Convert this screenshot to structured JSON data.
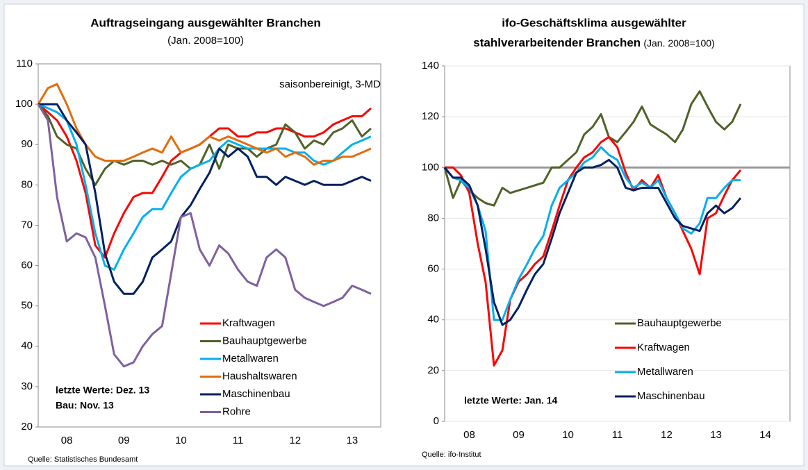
{
  "chart_data": [
    {
      "type": "line",
      "title": "Auftragseingang ausgewählter Branchen",
      "subtitle": "(Jan. 2008=100)",
      "annotations": [
        "saisonbereinigt, 3-MD",
        "letzte Werte: Dez. 13",
        "Bau: Nov. 13"
      ],
      "source": "Quelle: Statistisches Bundesamt",
      "x": [
        2008,
        2008.17,
        2008.33,
        2008.5,
        2008.67,
        2008.83,
        2009,
        2009.17,
        2009.33,
        2009.5,
        2009.67,
        2009.83,
        2010,
        2010.17,
        2010.33,
        2010.5,
        2010.67,
        2010.83,
        2011,
        2011.17,
        2011.33,
        2011.5,
        2011.67,
        2011.83,
        2012,
        2012.17,
        2012.33,
        2012.5,
        2012.67,
        2012.83,
        2013,
        2013.17,
        2013.33,
        2013.5,
        2013.67,
        2013.83
      ],
      "xlim": [
        2008,
        2014
      ],
      "xticks": [
        {
          "value": 2008.5,
          "label": "08"
        },
        {
          "value": 2009.5,
          "label": "09"
        },
        {
          "value": 2010.5,
          "label": "10"
        },
        {
          "value": 2011.5,
          "label": "11"
        },
        {
          "value": 2012.5,
          "label": "12"
        },
        {
          "value": 2013.5,
          "label": "13"
        }
      ],
      "ylim": [
        20,
        110
      ],
      "yticks": [
        20,
        30,
        40,
        50,
        60,
        70,
        80,
        90,
        100,
        110
      ],
      "grid": false,
      "series": [
        {
          "name": "Kraftwagen",
          "color": "#ff0000",
          "values": [
            100,
            98,
            96,
            92,
            86,
            78,
            65,
            62,
            68,
            73,
            77,
            78,
            78,
            82,
            86,
            88,
            89,
            90,
            92,
            94,
            94,
            92,
            92,
            93,
            93,
            94,
            94,
            93,
            92,
            92,
            93,
            95,
            96,
            97,
            97,
            99
          ]
        },
        {
          "name": "Bauhauptgewerbe",
          "color": "#4f6228",
          "values": [
            100,
            97,
            92,
            90,
            89,
            84,
            80,
            84,
            86,
            85,
            86,
            86,
            85,
            86,
            85,
            86,
            84,
            85,
            90,
            84,
            90,
            89,
            89,
            87,
            89,
            90,
            95,
            93,
            89,
            91,
            90,
            93,
            94,
            96,
            92,
            94
          ]
        },
        {
          "name": "Metallwaren",
          "color": "#00b0f0",
          "values": [
            100,
            99,
            98,
            96,
            90,
            80,
            68,
            60,
            59,
            64,
            68,
            72,
            74,
            74,
            78,
            82,
            84,
            85,
            86,
            89,
            91,
            90,
            89,
            89,
            89,
            89,
            89,
            88,
            88,
            86,
            85,
            86,
            88,
            90,
            91,
            92
          ]
        },
        {
          "name": "Haushaltswaren",
          "color": "#e46c0a",
          "values": [
            100,
            104,
            105,
            100,
            94,
            90,
            87,
            86,
            86,
            86,
            87,
            88,
            89,
            88,
            92,
            88,
            89,
            90,
            92,
            91,
            92,
            91,
            90,
            89,
            88,
            89,
            87,
            88,
            87,
            85,
            86,
            86,
            87,
            87,
            88,
            89
          ]
        },
        {
          "name": "Maschinenbau",
          "color": "#002060",
          "values": [
            100,
            100,
            100,
            96,
            93,
            90,
            78,
            63,
            56,
            53,
            53,
            56,
            62,
            64,
            66,
            72,
            75,
            79,
            83,
            89,
            87,
            89,
            87,
            82,
            82,
            80,
            82,
            81,
            80,
            81,
            80,
            80,
            80,
            81,
            82,
            81
          ]
        },
        {
          "name": "Rohre",
          "color": "#7f60a0",
          "values": [
            100,
            96,
            77,
            66,
            68,
            67,
            62,
            50,
            38,
            35,
            36,
            40,
            43,
            45,
            58,
            72,
            73,
            64,
            60,
            65,
            63,
            59,
            56,
            55,
            62,
            64,
            62,
            54,
            52,
            51,
            50,
            51,
            52,
            55,
            54,
            53
          ]
        }
      ]
    },
    {
      "type": "line",
      "title_lines": [
        "ifo-Geschäftsklima ausgewählter",
        "stahlverarbeitender Branchen"
      ],
      "subtitle": "(Jan. 2008=100)",
      "annotations": [
        "letzte Werte: Jan. 14"
      ],
      "source": "Quelle: ifo-Institut",
      "x": [
        2008,
        2008.17,
        2008.33,
        2008.5,
        2008.67,
        2008.83,
        2009,
        2009.17,
        2009.33,
        2009.5,
        2009.67,
        2009.83,
        2010,
        2010.17,
        2010.33,
        2010.5,
        2010.67,
        2010.83,
        2011,
        2011.17,
        2011.33,
        2011.5,
        2011.67,
        2011.83,
        2012,
        2012.17,
        2012.33,
        2012.5,
        2012.67,
        2012.83,
        2013,
        2013.17,
        2013.33,
        2013.5,
        2013.67,
        2013.83,
        2014
      ],
      "xlim": [
        2008,
        2015
      ],
      "xticks": [
        {
          "value": 2008.5,
          "label": "08"
        },
        {
          "value": 2009.5,
          "label": "09"
        },
        {
          "value": 2010.5,
          "label": "10"
        },
        {
          "value": 2011.5,
          "label": "11"
        },
        {
          "value": 2012.5,
          "label": "12"
        },
        {
          "value": 2013.5,
          "label": "13"
        },
        {
          "value": 2014.5,
          "label": "14"
        }
      ],
      "ylim": [
        0,
        140
      ],
      "yticks": [
        0,
        20,
        40,
        60,
        80,
        100,
        120,
        140
      ],
      "grid": true,
      "reference_line": 100,
      "series": [
        {
          "name": "Bauhauptgewerbe",
          "color": "#4f6228",
          "values": [
            100,
            88,
            95,
            91,
            88,
            86,
            85,
            92,
            90,
            91,
            92,
            93,
            94,
            100,
            100,
            103,
            106,
            113,
            116,
            121,
            112,
            110,
            114,
            118,
            124,
            117,
            115,
            113,
            110,
            115,
            125,
            130,
            124,
            118,
            115,
            118,
            125
          ]
        },
        {
          "name": "Kraftwagen",
          "color": "#ff0000",
          "values": [
            100,
            100,
            97,
            90,
            70,
            55,
            22,
            28,
            48,
            55,
            58,
            62,
            65,
            75,
            85,
            95,
            100,
            104,
            106,
            110,
            112,
            108,
            98,
            91,
            95,
            92,
            97,
            88,
            82,
            75,
            68,
            58,
            80,
            82,
            89,
            95,
            99
          ]
        },
        {
          "name": "Metallwaren",
          "color": "#00b0f0",
          "values": [
            100,
            96,
            95,
            92,
            85,
            75,
            40,
            40,
            48,
            56,
            62,
            68,
            73,
            85,
            92,
            95,
            98,
            102,
            104,
            108,
            105,
            103,
            96,
            92,
            94,
            92,
            95,
            88,
            82,
            76,
            74,
            78,
            88,
            88,
            92,
            95,
            95
          ]
        },
        {
          "name": "Maschinenbau",
          "color": "#002060",
          "values": [
            100,
            96,
            96,
            93,
            85,
            68,
            47,
            38,
            40,
            45,
            52,
            58,
            62,
            72,
            82,
            90,
            98,
            100,
            100,
            101,
            103,
            100,
            92,
            91,
            92,
            92,
            92,
            86,
            80,
            77,
            76,
            75,
            82,
            85,
            82,
            84,
            88
          ]
        }
      ]
    }
  ]
}
